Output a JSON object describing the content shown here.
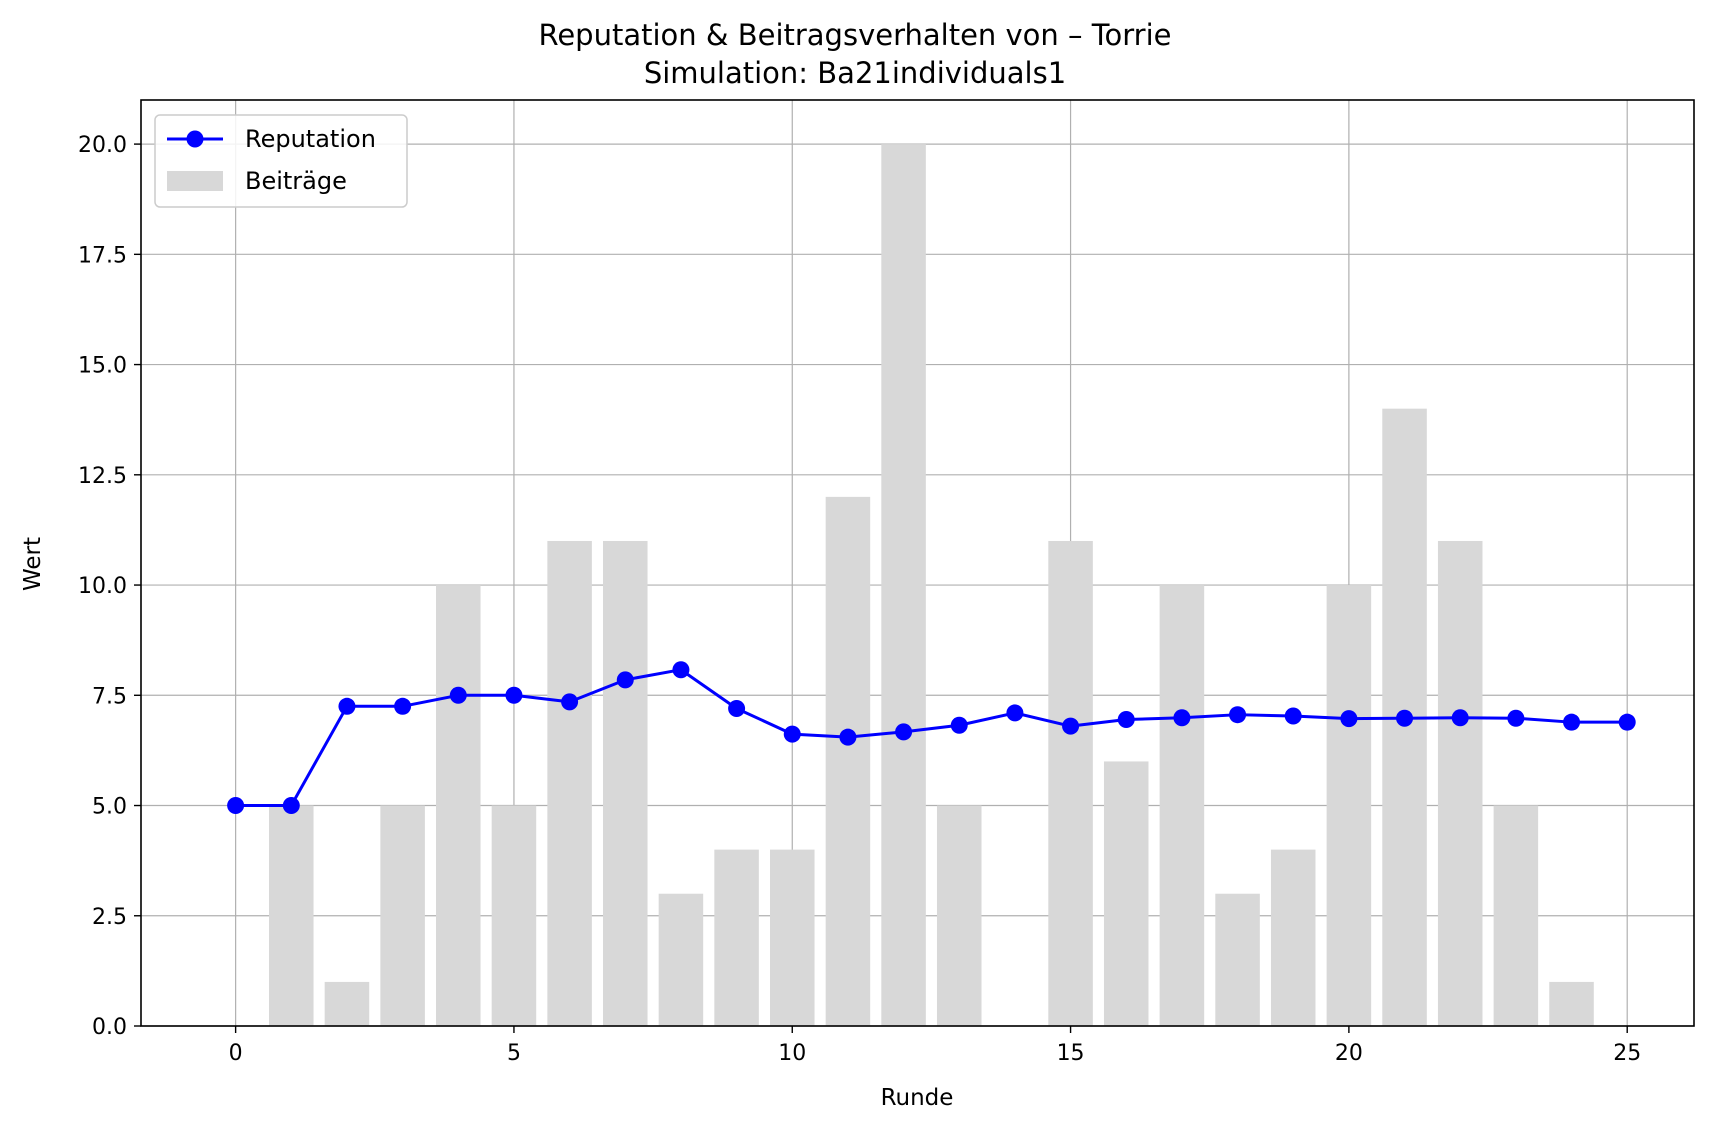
{
  "chart_data": {
    "type": "bar+line",
    "title": "Reputation & Beitragsverhalten von – Torrie",
    "subtitle": "Simulation: Ba21individuals1",
    "xlabel": "Runde",
    "ylabel": "Wert",
    "xlim": [
      -1.7,
      26.2
    ],
    "ylim": [
      0,
      21
    ],
    "xticks": [
      0,
      5,
      10,
      15,
      20,
      25
    ],
    "yticks": [
      0.0,
      2.5,
      5.0,
      7.5,
      10.0,
      12.5,
      15.0,
      17.5,
      20.0
    ],
    "grid": true,
    "legend_position": "top-left",
    "series": [
      {
        "name": "Reputation",
        "kind": "line",
        "marker": "circle",
        "color": "#0000ff",
        "x": [
          0,
          1,
          2,
          3,
          4,
          5,
          6,
          7,
          8,
          9,
          10,
          11,
          12,
          13,
          14,
          15,
          16,
          17,
          18,
          19,
          20,
          21,
          22,
          23,
          24,
          25
        ],
        "values": [
          5.0,
          5.0,
          7.25,
          7.25,
          7.5,
          7.5,
          7.35,
          7.85,
          8.08,
          7.2,
          6.62,
          6.55,
          6.67,
          6.82,
          7.1,
          6.8,
          6.95,
          6.99,
          7.06,
          7.03,
          6.97,
          6.98,
          6.99,
          6.98,
          6.89,
          6.89
        ]
      },
      {
        "name": "Beiträge",
        "kind": "bar",
        "color": "#d8d8d8",
        "x": [
          1,
          2,
          3,
          4,
          5,
          6,
          7,
          8,
          9,
          10,
          11,
          12,
          13,
          15,
          16,
          17,
          18,
          19,
          20,
          21,
          22,
          23,
          24
        ],
        "values": [
          5,
          1,
          5,
          10,
          5,
          11,
          11,
          3,
          4,
          4,
          12,
          20,
          5,
          11,
          6,
          10,
          3,
          4,
          10,
          14,
          11,
          5,
          1
        ]
      }
    ]
  }
}
